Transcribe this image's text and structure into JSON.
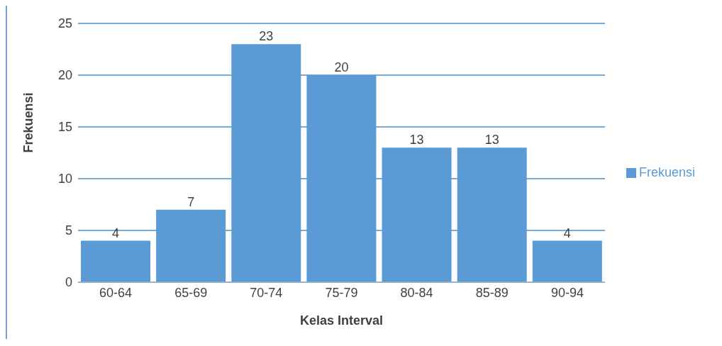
{
  "chart_data": {
    "type": "bar",
    "xlabel": "Kelas Interval",
    "ylabel": "Frekuensi",
    "categories": [
      "60-64",
      "65-69",
      "70-74",
      "75-79",
      "80-84",
      "85-89",
      "90-94"
    ],
    "series": [
      {
        "name": "Frekuensi",
        "color": "#5b9bd5",
        "values": [
          4,
          7,
          23,
          20,
          13,
          13,
          4
        ]
      }
    ],
    "ylim": [
      0,
      25
    ],
    "yticks": [
      0,
      5,
      10,
      15,
      20,
      25
    ],
    "grid": "y",
    "legend": "right",
    "data_labels": true
  }
}
